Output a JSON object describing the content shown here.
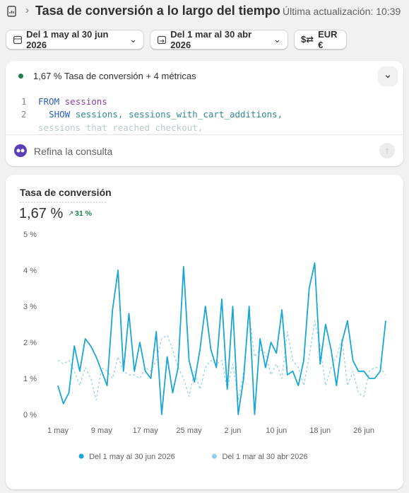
{
  "header": {
    "title": "Tasa de conversión a lo largo del tiempo",
    "updated": "Última actualización: 10:39"
  },
  "toolbar": {
    "date_range": "Del 1 may al 30 jun 2026",
    "compare_range": "Del 1 mar al 30 abr 2026",
    "currency": "EUR €"
  },
  "query": {
    "summary": "1,67 % Tasa de conversión + 4 métricas",
    "line_numbers": [
      "1",
      "2"
    ],
    "code": [
      [
        "FROM",
        "sessions"
      ],
      [
        "SHOW",
        "sessions, sessions_with_cart_additions,"
      ],
      [
        "sessions_that_reached_checkout,"
      ]
    ],
    "prompt": "Refina la consulta"
  },
  "chart_data": {
    "type": "line",
    "title": "Tasa de conversión",
    "kpi_value": "1,67 %",
    "kpi_change": "31 %",
    "categories": [
      "1 may",
      null,
      null,
      null,
      null,
      null,
      null,
      null,
      "9 may",
      null,
      null,
      null,
      null,
      null,
      null,
      null,
      "17 may",
      null,
      null,
      null,
      null,
      null,
      null,
      null,
      "25 may",
      null,
      null,
      null,
      null,
      null,
      null,
      null,
      "2 jun",
      null,
      null,
      null,
      null,
      null,
      null,
      null,
      "10 jun",
      null,
      null,
      null,
      null,
      null,
      null,
      null,
      "18 jun",
      null,
      null,
      null,
      null,
      null,
      null,
      null,
      "26 jun",
      null,
      null,
      null,
      null
    ],
    "series": [
      {
        "name": "Del 1 may al 30 jun 2026",
        "color": "#1aa6d4",
        "dashed": false,
        "values": [
          0.8,
          0.3,
          0.6,
          1.9,
          1.2,
          2.1,
          1.9,
          1.6,
          1.2,
          0.8,
          2.9,
          4.0,
          1.2,
          2.8,
          1.2,
          2.0,
          1.2,
          1.0,
          2.3,
          0.0,
          1.6,
          0.6,
          1.3,
          4.1,
          1.5,
          0.9,
          1.8,
          3.0,
          1.8,
          1.3,
          3.2,
          0.7,
          3.0,
          0.0,
          1.0,
          3.0,
          0.0,
          2.1,
          1.3,
          2.0,
          1.7,
          2.9,
          1.1,
          1.2,
          0.8,
          1.5,
          3.5,
          4.2,
          1.4,
          2.5,
          1.8,
          0.8,
          2.0,
          2.6,
          1.5,
          1.2,
          1.2,
          1.0,
          1.0,
          1.2,
          2.6
        ]
      },
      {
        "name": "Del 1 mar al 30 abr 2026",
        "color": "#8fd0e8",
        "dashed": true,
        "values": [
          1.5,
          1.4,
          1.5,
          1.2,
          0.8,
          1.3,
          1.0,
          0.4,
          1.3,
          1.2,
          1.0,
          1.6,
          1.2,
          1.1,
          1.1,
          1.0,
          1.3,
          1.2,
          1.5,
          2.1,
          2.2,
          1.8,
          1.3,
          1.0,
          0.5,
          1.2,
          0.7,
          1.3,
          1.5,
          1.4,
          1.5,
          0.7,
          1.4,
          0.4,
          1.2,
          2.8,
          1.6,
          1.8,
          1.7,
          1.1,
          1.4,
          1.0,
          2.3,
          1.5,
          1.3,
          0.8,
          1.6,
          2.6,
          1.9,
          0.8,
          1.3,
          1.6,
          2.1,
          0.8,
          1.2,
          0.6,
          0.5,
          1.2,
          1.3,
          1.3,
          1.1
        ]
      }
    ],
    "ylim": [
      0,
      5
    ],
    "yticks": [
      {
        "value": 0,
        "label": "0 %"
      },
      {
        "value": 1,
        "label": "1 %"
      },
      {
        "value": 2,
        "label": "2 %"
      },
      {
        "value": 3,
        "label": "3 %"
      },
      {
        "value": 4,
        "label": "4 %"
      },
      {
        "value": 5,
        "label": "5 %"
      }
    ],
    "grid": false,
    "legend": "bottom"
  }
}
